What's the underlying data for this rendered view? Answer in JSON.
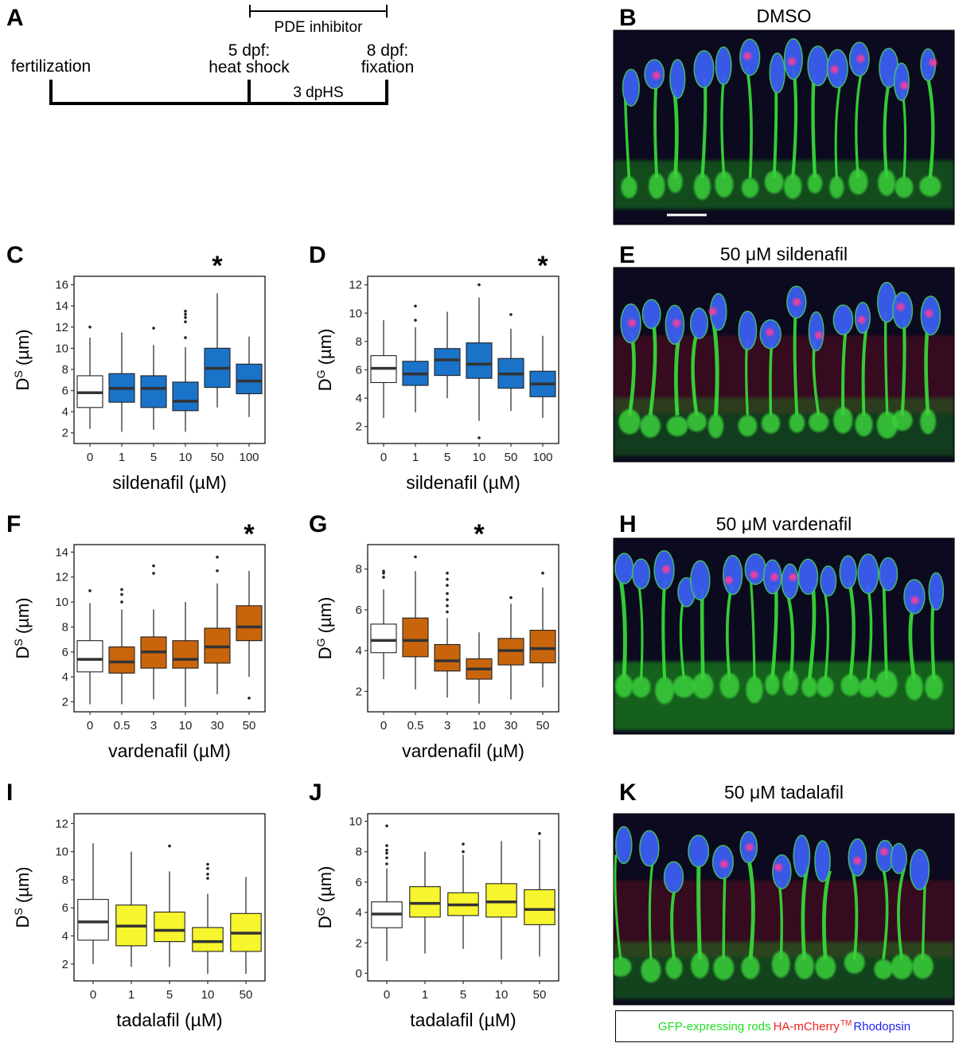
{
  "panel_labels": [
    "A",
    "B",
    "C",
    "D",
    "E",
    "F",
    "G",
    "H",
    "I",
    "J",
    "K"
  ],
  "timeline": {
    "inhibitor_label": "PDE inhibitor",
    "fertilization": "fertilization",
    "heat_shock_day": "5 dpf:",
    "heat_shock": "heat shock",
    "fixation_day": "8 dpf:",
    "fixation": "fixation",
    "dphs": "3 dpHS"
  },
  "micrographs": {
    "B": "DMSO",
    "E": "50 μM sildenafil",
    "H": "50 μM vardenafil",
    "K": "50 μM tadalafil"
  },
  "legend": {
    "green": "GFP-expressing rods",
    "red": "HA-mCherry",
    "red_sup": "TM",
    "blue": "Rhodopsin"
  },
  "colors": {
    "control": "#ffffff",
    "sildenafil": "#1a73c9",
    "vardenafil": "#c8650c",
    "tadalafil": "#f7f52e"
  },
  "significance_marker": "*",
  "chart_data": [
    {
      "panel": "C",
      "type": "box",
      "ylabel": "D",
      "ylabel_sup": "S",
      "ylabel_unit": " (µm)",
      "xlabel": "sildenafil (µM)",
      "ylim": [
        1,
        16.8
      ],
      "yticks": [
        2,
        4,
        6,
        8,
        10,
        12,
        14,
        16
      ],
      "categories": [
        "0",
        "1",
        "5",
        "10",
        "50",
        "100"
      ],
      "significant": [
        4
      ],
      "boxes": [
        {
          "min": 2.4,
          "q1": 4.4,
          "median": 5.8,
          "q3": 7.4,
          "max": 11.0,
          "outliers": [
            12.0
          ]
        },
        {
          "min": 2.1,
          "q1": 4.9,
          "median": 6.2,
          "q3": 7.6,
          "max": 11.5,
          "outliers": []
        },
        {
          "min": 2.3,
          "q1": 4.4,
          "median": 6.2,
          "q3": 7.4,
          "max": 10.3,
          "outliers": [
            11.9
          ]
        },
        {
          "min": 2.1,
          "q1": 4.1,
          "median": 5.0,
          "q3": 6.8,
          "max": 10.1,
          "outliers": [
            11.0,
            12.5,
            12.9,
            13.2,
            13.5
          ]
        },
        {
          "min": 4.4,
          "q1": 6.3,
          "median": 8.1,
          "q3": 10.0,
          "max": 15.2,
          "outliers": []
        },
        {
          "min": 3.5,
          "q1": 5.7,
          "median": 6.9,
          "q3": 8.5,
          "max": 11.1,
          "outliers": []
        }
      ]
    },
    {
      "panel": "D",
      "type": "box",
      "ylabel": "D",
      "ylabel_sup": "G",
      "ylabel_unit": " (µm)",
      "xlabel": "sildenafil (µM)",
      "ylim": [
        0.8,
        12.6
      ],
      "yticks": [
        2,
        4,
        6,
        8,
        10,
        12
      ],
      "categories": [
        "0",
        "1",
        "5",
        "10",
        "50",
        "100"
      ],
      "significant": [
        5
      ],
      "boxes": [
        {
          "min": 2.6,
          "q1": 5.1,
          "median": 6.1,
          "q3": 7.0,
          "max": 9.5,
          "outliers": []
        },
        {
          "min": 3.0,
          "q1": 4.9,
          "median": 5.7,
          "q3": 6.6,
          "max": 9.0,
          "outliers": [
            9.5,
            10.5
          ]
        },
        {
          "min": 4.0,
          "q1": 5.6,
          "median": 6.7,
          "q3": 7.5,
          "max": 10.1,
          "outliers": []
        },
        {
          "min": 2.4,
          "q1": 5.4,
          "median": 6.4,
          "q3": 7.9,
          "max": 11.1,
          "outliers": [
            1.2,
            12.0
          ]
        },
        {
          "min": 3.1,
          "q1": 4.7,
          "median": 5.7,
          "q3": 6.8,
          "max": 8.9,
          "outliers": [
            9.9
          ]
        },
        {
          "min": 2.6,
          "q1": 4.1,
          "median": 5.0,
          "q3": 5.9,
          "max": 8.4,
          "outliers": []
        }
      ]
    },
    {
      "panel": "F",
      "type": "box",
      "ylabel": "D",
      "ylabel_sup": "S",
      "ylabel_unit": " (µm)",
      "xlabel": "vardenafil (µM)",
      "ylim": [
        1.2,
        14.6
      ],
      "yticks": [
        2,
        4,
        6,
        8,
        10,
        12,
        14
      ],
      "categories": [
        "0",
        "0.5",
        "3",
        "10",
        "30",
        "50"
      ],
      "significant": [
        5
      ],
      "boxes": [
        {
          "min": 1.8,
          "q1": 4.4,
          "median": 5.4,
          "q3": 6.9,
          "max": 9.9,
          "outliers": [
            10.9
          ]
        },
        {
          "min": 1.8,
          "q1": 4.3,
          "median": 5.2,
          "q3": 6.4,
          "max": 9.4,
          "outliers": [
            10.0,
            10.6,
            11.0
          ]
        },
        {
          "min": 2.2,
          "q1": 4.7,
          "median": 6.0,
          "q3": 7.2,
          "max": 9.4,
          "outliers": [
            12.3,
            12.9
          ]
        },
        {
          "min": 1.6,
          "q1": 4.7,
          "median": 5.4,
          "q3": 6.9,
          "max": 10.0,
          "outliers": []
        },
        {
          "min": 2.6,
          "q1": 5.1,
          "median": 6.4,
          "q3": 7.9,
          "max": 11.5,
          "outliers": [
            12.5,
            13.6
          ]
        },
        {
          "min": 4.0,
          "q1": 6.9,
          "median": 8.0,
          "q3": 9.7,
          "max": 12.5,
          "outliers": [
            2.3
          ]
        }
      ]
    },
    {
      "panel": "G",
      "type": "box",
      "ylabel": "D",
      "ylabel_sup": "G",
      "ylabel_unit": " (µm)",
      "xlabel": "vardenafil (µM)",
      "ylim": [
        1.0,
        9.2
      ],
      "yticks": [
        2,
        4,
        6,
        8
      ],
      "categories": [
        "0",
        "0.5",
        "3",
        "10",
        "30",
        "50"
      ],
      "significant": [
        3
      ],
      "boxes": [
        {
          "min": 2.6,
          "q1": 3.9,
          "median": 4.5,
          "q3": 5.3,
          "max": 7.0,
          "outliers": [
            7.6,
            7.8,
            7.9
          ]
        },
        {
          "min": 2.1,
          "q1": 3.7,
          "median": 4.5,
          "q3": 5.6,
          "max": 7.9,
          "outliers": [
            8.6
          ]
        },
        {
          "min": 1.7,
          "q1": 3.0,
          "median": 3.5,
          "q3": 4.3,
          "max": 5.6,
          "outliers": [
            5.9,
            6.2,
            6.5,
            6.8,
            7.2,
            7.5,
            7.8
          ]
        },
        {
          "min": 1.4,
          "q1": 2.6,
          "median": 3.1,
          "q3": 3.6,
          "max": 4.9,
          "outliers": []
        },
        {
          "min": 1.6,
          "q1": 3.3,
          "median": 4.0,
          "q3": 4.6,
          "max": 6.3,
          "outliers": [
            6.6
          ]
        },
        {
          "min": 2.2,
          "q1": 3.4,
          "median": 4.1,
          "q3": 5.0,
          "max": 7.1,
          "outliers": [
            7.8
          ]
        }
      ]
    },
    {
      "panel": "I",
      "type": "box",
      "ylabel": "D",
      "ylabel_sup": "S",
      "ylabel_unit": " (µm)",
      "xlabel": "tadalafil (µM)",
      "ylim": [
        0.8,
        12.7
      ],
      "yticks": [
        2,
        4,
        6,
        8,
        10,
        12
      ],
      "categories": [
        "0",
        "1",
        "5",
        "10",
        "50"
      ],
      "significant": [],
      "boxes": [
        {
          "min": 2.0,
          "q1": 3.7,
          "median": 5.0,
          "q3": 6.6,
          "max": 10.6,
          "outliers": []
        },
        {
          "min": 1.8,
          "q1": 3.3,
          "median": 4.7,
          "q3": 6.2,
          "max": 10.0,
          "outliers": []
        },
        {
          "min": 1.8,
          "q1": 3.6,
          "median": 4.4,
          "q3": 5.7,
          "max": 8.6,
          "outliers": [
            10.4
          ]
        },
        {
          "min": 1.3,
          "q1": 2.9,
          "median": 3.6,
          "q3": 4.6,
          "max": 7.0,
          "outliers": [
            8.1,
            8.4,
            8.8,
            9.1
          ]
        },
        {
          "min": 1.3,
          "q1": 2.9,
          "median": 4.2,
          "q3": 5.6,
          "max": 8.2,
          "outliers": []
        }
      ]
    },
    {
      "panel": "J",
      "type": "box",
      "ylabel": "D",
      "ylabel_sup": "G",
      "ylabel_unit": " (µm)",
      "xlabel": "tadalafil (µM)",
      "ylim": [
        -0.5,
        10.5
      ],
      "yticks": [
        0,
        2,
        4,
        6,
        8,
        10
      ],
      "categories": [
        "0",
        "1",
        "5",
        "10",
        "50"
      ],
      "significant": [],
      "boxes": [
        {
          "min": 0.8,
          "q1": 3.0,
          "median": 3.9,
          "q3": 4.7,
          "max": 6.9,
          "outliers": [
            7.2,
            7.6,
            7.9,
            8.1,
            8.4,
            9.7
          ]
        },
        {
          "min": 1.3,
          "q1": 3.7,
          "median": 4.6,
          "q3": 5.7,
          "max": 8.0,
          "outliers": []
        },
        {
          "min": 1.6,
          "q1": 3.8,
          "median": 4.5,
          "q3": 5.3,
          "max": 7.8,
          "outliers": [
            8.0,
            8.5
          ]
        },
        {
          "min": 0.9,
          "q1": 3.7,
          "median": 4.7,
          "q3": 5.9,
          "max": 8.7,
          "outliers": []
        },
        {
          "min": 1.1,
          "q1": 3.2,
          "median": 4.2,
          "q3": 5.5,
          "max": 8.8,
          "outliers": [
            9.2
          ]
        }
      ]
    }
  ]
}
